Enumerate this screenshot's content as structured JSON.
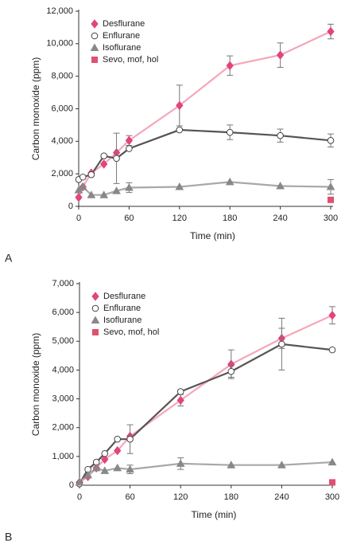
{
  "chart_data": [
    {
      "type": "line",
      "panel_label": "A",
      "x_label": "Time (min)",
      "y_label": "Carbon monoxide (ppm)",
      "x": [
        0,
        5,
        15,
        30,
        45,
        60,
        120,
        180,
        240,
        300
      ],
      "xlim": [
        0,
        300
      ],
      "xticks": [
        0,
        60,
        120,
        180,
        240,
        300
      ],
      "ylim": [
        0,
        12000
      ],
      "yticks": [
        0,
        {
          "value": 2000,
          "label": "2,000"
        },
        {
          "value": 4000,
          "label": "4,000"
        },
        {
          "value": 6000,
          "label": "6,000"
        },
        {
          "value": 8000,
          "label": "8,000"
        },
        {
          "value": 10000,
          "label": "10,000"
        },
        {
          "value": 12000,
          "label": "12,000"
        }
      ],
      "series": [
        {
          "name": "Desflurane",
          "marker": "diamond",
          "color": "#e0457b",
          "line_color": "#f5a7b8",
          "values": [
            550,
            1200,
            2050,
            2600,
            3300,
            4050,
            6200,
            8650,
            9300,
            10750
          ],
          "errors": [
            null,
            null,
            null,
            null,
            null,
            300,
            1250,
            600,
            750,
            450
          ]
        },
        {
          "name": "Enflurane",
          "marker": "circle",
          "color": "#ffffff",
          "line_color": "#555555",
          "values": [
            1650,
            1800,
            1950,
            3100,
            2950,
            3550,
            4700,
            4550,
            4350,
            4050
          ],
          "errors": [
            null,
            null,
            null,
            null,
            1550,
            null,
            null,
            450,
            400,
            400
          ]
        },
        {
          "name": "Isoflurane",
          "marker": "triangle",
          "color": "#888888",
          "line_color": "#a8a8a8",
          "values": [
            1000,
            1200,
            700,
            700,
            950,
            1150,
            1200,
            1500,
            1250,
            1200
          ],
          "errors": [
            null,
            null,
            null,
            null,
            null,
            300,
            null,
            null,
            null,
            450
          ]
        },
        {
          "name": "Sevo, mof, hol",
          "marker": "square",
          "color": "#e05070",
          "values": [
            null,
            null,
            null,
            null,
            null,
            null,
            null,
            null,
            null,
            400
          ],
          "errors": [
            null,
            null,
            null,
            null,
            null,
            null,
            null,
            null,
            null,
            null
          ]
        }
      ]
    },
    {
      "type": "line",
      "panel_label": "B",
      "x_label": "Time (min)",
      "y_label": "Carbon monoxide (ppm)",
      "x": [
        0,
        10,
        20,
        30,
        45,
        60,
        120,
        180,
        240,
        300
      ],
      "xlim": [
        0,
        300
      ],
      "xticks": [
        0,
        60,
        120,
        180,
        240,
        300
      ],
      "ylim": [
        0,
        7000
      ],
      "yticks": [
        0,
        {
          "value": 1000,
          "label": "1,000"
        },
        {
          "value": 2000,
          "label": "2,000"
        },
        {
          "value": 3000,
          "label": "3,000"
        },
        {
          "value": 4000,
          "label": "4,000"
        },
        {
          "value": 5000,
          "label": "5,000"
        },
        {
          "value": 6000,
          "label": "6,000"
        },
        {
          "value": 7000,
          "label": "7,000"
        }
      ],
      "series": [
        {
          "name": "Desflurane",
          "marker": "diamond",
          "color": "#e0457b",
          "line_color": "#f5a7b8",
          "values": [
            100,
            300,
            600,
            900,
            1200,
            1700,
            2950,
            4200,
            5100,
            5900
          ],
          "errors": [
            null,
            null,
            null,
            null,
            null,
            null,
            200,
            500,
            350,
            300
          ]
        },
        {
          "name": "Enflurane",
          "marker": "circle",
          "color": "#ffffff",
          "line_color": "#555555",
          "values": [
            50,
            550,
            800,
            1100,
            1600,
            1600,
            3250,
            3950,
            4900,
            4700
          ],
          "errors": [
            null,
            null,
            null,
            null,
            null,
            500,
            null,
            200,
            900,
            null
          ]
        },
        {
          "name": "Isoflurane",
          "marker": "triangle",
          "color": "#888888",
          "line_color": "#a8a8a8",
          "values": [
            100,
            350,
            600,
            500,
            600,
            550,
            750,
            700,
            700,
            800
          ],
          "errors": [
            null,
            null,
            null,
            null,
            null,
            150,
            200,
            null,
            null,
            null
          ]
        },
        {
          "name": "Sevo, mof, hol",
          "marker": "square",
          "color": "#e05070",
          "values": [
            null,
            null,
            null,
            null,
            null,
            null,
            null,
            null,
            null,
            100
          ],
          "errors": [
            null,
            null,
            null,
            null,
            null,
            null,
            null,
            null,
            null,
            null
          ]
        }
      ]
    }
  ]
}
